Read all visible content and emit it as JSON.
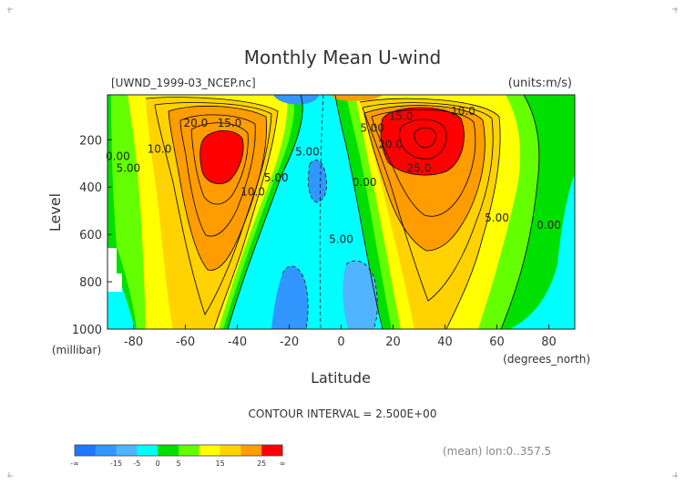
{
  "chart_data": {
    "type": "contour",
    "title": "Monthly Mean U-wind",
    "dataset_label": "[UWND_1999-03_NCEP.nc]",
    "units_label": "(units:m/s)",
    "xlabel": "Latitude",
    "x_unit": "(degrees_north)",
    "ylabel": "Level",
    "y_unit": "(millibar)",
    "xlim": [
      -90,
      90
    ],
    "ylim": [
      1000,
      10
    ],
    "x_ticks": [
      -80,
      -60,
      -40,
      -20,
      0,
      20,
      40,
      60,
      80
    ],
    "y_ticks": [
      200,
      400,
      600,
      800,
      1000
    ],
    "contour_interval_text": "CONTOUR INTERVAL = 2.500E+00",
    "contour_labels": [
      {
        "text": "20.0",
        "lat": -56,
        "lev": 130
      },
      {
        "text": "15.0",
        "lat": -43,
        "lev": 130
      },
      {
        "text": "10.0",
        "lat": -70,
        "lev": 240
      },
      {
        "text": "0.00",
        "lat": -86,
        "lev": 270
      },
      {
        "text": "5.00",
        "lat": -82,
        "lev": 320
      },
      {
        "text": "10.0",
        "lat": -34,
        "lev": 420
      },
      {
        "text": "5.00",
        "lat": -25,
        "lev": 360
      },
      {
        "text": "5.00",
        "lat": -13,
        "lev": 250
      },
      {
        "text": "5.00",
        "lat": 12,
        "lev": 150
      },
      {
        "text": "15.0",
        "lat": 23,
        "lev": 100
      },
      {
        "text": "10.0",
        "lat": 47,
        "lev": 80
      },
      {
        "text": "20.0",
        "lat": 19,
        "lev": 220
      },
      {
        "text": "25.0",
        "lat": 30,
        "lev": 320
      },
      {
        "text": "0.00",
        "lat": 9,
        "lev": 380
      },
      {
        "text": "5.00",
        "lat": 0,
        "lev": 620
      },
      {
        "text": "5.00",
        "lat": 60,
        "lev": 530
      },
      {
        "text": "0.00",
        "lat": 80,
        "lev": 560
      }
    ],
    "colorbar": {
      "colors": [
        "#1e78ff",
        "#3296ff",
        "#50b4ff",
        "#00ffff",
        "#00e000",
        "#64ff00",
        "#ffff00",
        "#ffd200",
        "#ff9c00",
        "#ff0000"
      ],
      "labels": [
        "-∞",
        "-15",
        "-5",
        "0",
        "5",
        "15",
        "25",
        "∞"
      ]
    },
    "footer_note": "(mean) lon:0..357.5"
  }
}
